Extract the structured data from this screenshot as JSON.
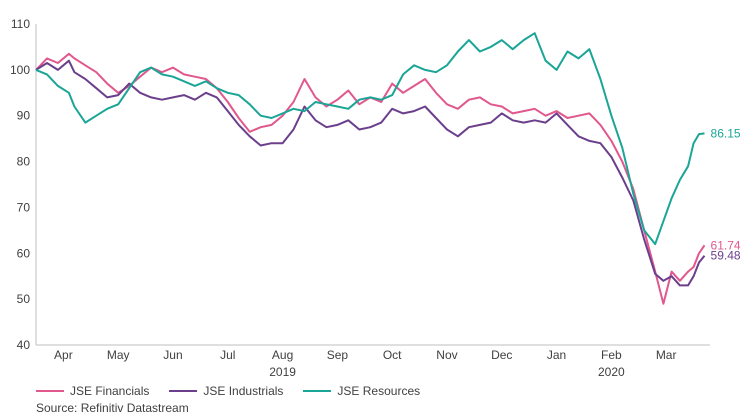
{
  "chart_data": {
    "type": "line",
    "ylim": [
      40,
      110
    ],
    "yticks": [
      40,
      50,
      60,
      70,
      80,
      90,
      100,
      110
    ],
    "xlim": [
      0,
      12.3
    ],
    "month_labels": [
      {
        "label": "Apr",
        "x": 0.5
      },
      {
        "label": "May",
        "x": 1.5
      },
      {
        "label": "Jun",
        "x": 2.5
      },
      {
        "label": "Jul",
        "x": 3.5
      },
      {
        "label": "Aug",
        "x": 4.5
      },
      {
        "label": "Sep",
        "x": 5.5
      },
      {
        "label": "Oct",
        "x": 6.5
      },
      {
        "label": "Nov",
        "x": 7.5
      },
      {
        "label": "Dec",
        "x": 8.5
      },
      {
        "label": "Jan",
        "x": 9.5
      },
      {
        "label": "Feb",
        "x": 10.5
      },
      {
        "label": "Mar",
        "x": 11.5
      }
    ],
    "year_labels": [
      {
        "label": "2019",
        "x": 4.5
      },
      {
        "label": "2020",
        "x": 10.5
      }
    ],
    "grid": false,
    "legend_position": "bottom-left",
    "series": [
      {
        "name": "JSE Financials",
        "color": "#e0588d",
        "end_label": "61.74",
        "x": [
          0,
          0.2,
          0.4,
          0.6,
          0.7,
          0.9,
          1.1,
          1.3,
          1.5,
          1.7,
          1.9,
          2.1,
          2.3,
          2.5,
          2.7,
          2.9,
          3.1,
          3.3,
          3.5,
          3.7,
          3.9,
          4.1,
          4.3,
          4.5,
          4.7,
          4.9,
          5.1,
          5.3,
          5.5,
          5.7,
          5.9,
          6.1,
          6.3,
          6.5,
          6.7,
          6.9,
          7.1,
          7.3,
          7.5,
          7.7,
          7.9,
          8.1,
          8.3,
          8.5,
          8.7,
          8.9,
          9.1,
          9.3,
          9.5,
          9.7,
          9.9,
          10.1,
          10.3,
          10.5,
          10.7,
          10.9,
          11.1,
          11.3,
          11.45,
          11.6,
          11.75,
          11.9,
          12.0,
          12.1,
          12.2
        ],
        "values": [
          100,
          102.5,
          101.5,
          103.5,
          102.5,
          101,
          99.5,
          97,
          95,
          96.5,
          98.5,
          100.5,
          99.5,
          100.5,
          99,
          98.5,
          98,
          96,
          93,
          89.5,
          86.5,
          87.5,
          88,
          90,
          93,
          98,
          94,
          92,
          93.5,
          95.5,
          92.5,
          94,
          93,
          97,
          95,
          96.5,
          98,
          95,
          92.5,
          91.5,
          93.5,
          94,
          92.5,
          92,
          90.5,
          91,
          91.5,
          90,
          91,
          89.5,
          90,
          90.5,
          88,
          84.5,
          80,
          74,
          65,
          56,
          49,
          56,
          54,
          56,
          57,
          60,
          61.74
        ]
      },
      {
        "name": "JSE Industrials",
        "color": "#6b3f8c",
        "end_label": "59.48",
        "x": [
          0,
          0.2,
          0.4,
          0.6,
          0.7,
          0.9,
          1.1,
          1.3,
          1.5,
          1.7,
          1.9,
          2.1,
          2.3,
          2.5,
          2.7,
          2.9,
          3.1,
          3.3,
          3.5,
          3.7,
          3.9,
          4.1,
          4.3,
          4.5,
          4.7,
          4.9,
          5.1,
          5.3,
          5.5,
          5.7,
          5.9,
          6.1,
          6.3,
          6.5,
          6.7,
          6.9,
          7.1,
          7.3,
          7.5,
          7.7,
          7.9,
          8.1,
          8.3,
          8.5,
          8.7,
          8.9,
          9.1,
          9.3,
          9.5,
          9.7,
          9.9,
          10.1,
          10.3,
          10.5,
          10.7,
          10.9,
          11.1,
          11.3,
          11.45,
          11.6,
          11.75,
          11.9,
          12.0,
          12.1,
          12.2
        ],
        "values": [
          100,
          101.5,
          100,
          102,
          99.5,
          98,
          96,
          94,
          94.5,
          97,
          95,
          94,
          93.5,
          94,
          94.5,
          93.5,
          95,
          94,
          91,
          88,
          85.5,
          83.5,
          84,
          84,
          87,
          92,
          89,
          87.5,
          88,
          89,
          87,
          87.5,
          88.5,
          91.5,
          90.5,
          91,
          92,
          89.5,
          87,
          85.5,
          87.5,
          88,
          88.5,
          90.5,
          89,
          88.5,
          89,
          88.5,
          90.5,
          88,
          85.5,
          84.5,
          84,
          81,
          76.5,
          71.5,
          63,
          55.5,
          54,
          55,
          53,
          53,
          55,
          58,
          59.48
        ]
      },
      {
        "name": "JSE Resources",
        "color": "#1aa596",
        "end_label": "86.15",
        "x": [
          0,
          0.2,
          0.4,
          0.6,
          0.7,
          0.9,
          1.1,
          1.3,
          1.5,
          1.7,
          1.9,
          2.1,
          2.3,
          2.5,
          2.7,
          2.9,
          3.1,
          3.3,
          3.5,
          3.7,
          3.9,
          4.1,
          4.3,
          4.5,
          4.7,
          4.9,
          5.1,
          5.3,
          5.5,
          5.7,
          5.9,
          6.1,
          6.3,
          6.5,
          6.7,
          6.9,
          7.1,
          7.3,
          7.5,
          7.7,
          7.9,
          8.1,
          8.3,
          8.5,
          8.7,
          8.9,
          9.1,
          9.3,
          9.5,
          9.7,
          9.9,
          10.1,
          10.3,
          10.5,
          10.7,
          10.9,
          11.1,
          11.3,
          11.45,
          11.6,
          11.75,
          11.9,
          12.0,
          12.1,
          12.2
        ],
        "values": [
          100,
          99,
          96.5,
          95,
          92,
          88.5,
          90,
          91.5,
          92.5,
          96,
          99.5,
          100.5,
          99,
          98.5,
          97.5,
          96.5,
          97.5,
          96,
          95,
          94.5,
          92.5,
          90,
          89.5,
          90.5,
          91.5,
          91,
          93,
          92.5,
          92,
          91.5,
          93.5,
          94,
          93.5,
          94.5,
          99,
          101,
          100,
          99.5,
          101,
          104,
          106.5,
          104,
          105,
          106.5,
          104.5,
          106.5,
          108,
          102,
          100,
          104,
          102.5,
          104.5,
          98,
          90,
          83,
          73,
          65,
          62,
          67,
          72,
          76,
          79,
          84,
          86,
          86.15
        ]
      }
    ]
  },
  "legend": {
    "items": [
      {
        "label": "JSE Financials",
        "color": "#e0588d"
      },
      {
        "label": "JSE Industrials",
        "color": "#6b3f8c"
      },
      {
        "label": "JSE Resources",
        "color": "#1aa596"
      }
    ]
  },
  "source_text": "Source: Refinitiv Datastream"
}
